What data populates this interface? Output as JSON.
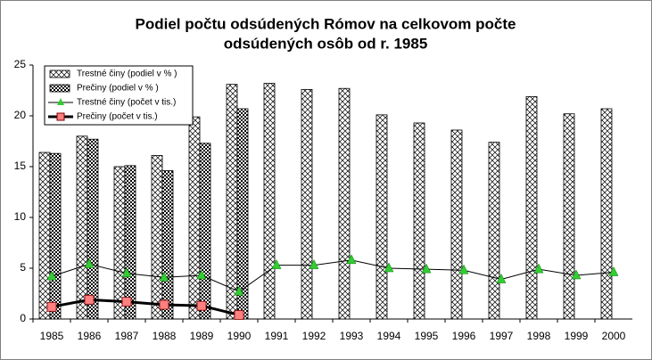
{
  "chart_data": {
    "type": "bar",
    "title": [
      "Podiel počtu odsúdených Rómov na celkovom počte",
      "odsúdených osôb od r. 1985"
    ],
    "categories": [
      "1985",
      "1986",
      "1987",
      "1988",
      "1989",
      "1990",
      "1991",
      "1992",
      "1993",
      "1994",
      "1995",
      "1996",
      "1997",
      "1998",
      "1999",
      "2000"
    ],
    "series": [
      {
        "name": "Trestné činy (podiel v % )",
        "type": "bar",
        "color": "#000000",
        "values": [
          16.4,
          18.0,
          15.0,
          16.1,
          19.9,
          23.1,
          23.2,
          22.6,
          22.7,
          20.1,
          19.3,
          18.6,
          17.4,
          21.9,
          20.2,
          20.7
        ]
      },
      {
        "name": "Prečiny (podiel v % )",
        "type": "bar",
        "color": "#000000",
        "values": [
          16.3,
          17.7,
          15.1,
          14.6,
          17.3,
          20.7,
          null,
          null,
          null,
          null,
          null,
          null,
          null,
          null,
          null,
          null
        ]
      },
      {
        "name": "Trestné činy (počet v tis.)",
        "type": "line",
        "color": "#33cc33",
        "values": [
          4.2,
          5.4,
          4.5,
          4.1,
          4.3,
          2.7,
          5.3,
          5.3,
          5.8,
          5.0,
          4.9,
          4.8,
          3.9,
          4.9,
          4.3,
          4.6
        ]
      },
      {
        "name": "Prečiny (počet v tis.)",
        "type": "line",
        "color": "#ff8080",
        "values": [
          1.2,
          1.9,
          1.7,
          1.4,
          1.3,
          0.4,
          null,
          null,
          null,
          null,
          null,
          null,
          null,
          null,
          null,
          null
        ]
      }
    ],
    "ylim": [
      0,
      25
    ],
    "yticks": [
      0,
      5,
      10,
      15,
      20,
      25
    ],
    "grid": false,
    "legend": "top-left"
  }
}
